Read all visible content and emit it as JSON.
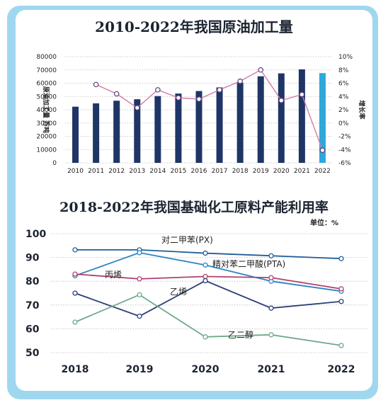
{
  "chart_data": [
    {
      "type": "bar",
      "title": "2010-2022年我国原油加工量",
      "ylabel": "原油加工量 万吨",
      "y2label": "增长率",
      "categories": [
        "2010",
        "2011",
        "2012",
        "2013",
        "2014",
        "2015",
        "2016",
        "2017",
        "2018",
        "2019",
        "2020",
        "2021",
        "2022"
      ],
      "ylim": [
        0,
        80000
      ],
      "yticks": [
        0,
        10000,
        20000,
        30000,
        40000,
        50000,
        60000,
        70000,
        80000
      ],
      "y2lim": [
        -6,
        10
      ],
      "y2ticks": [
        "-6%",
        "-4%",
        "-2%",
        "0%",
        "2%",
        "4%",
        "6%",
        "8%",
        "10%"
      ],
      "series": [
        {
          "kind": "bar",
          "values": [
            42300,
            44800,
            46800,
            47900,
            50300,
            52200,
            54100,
            56800,
            60400,
            65200,
            67400,
            70400,
            67600
          ]
        },
        {
          "kind": "line",
          "axis": "right",
          "values": [
            null,
            5.8,
            4.4,
            2.3,
            5.0,
            3.8,
            3.6,
            5.0,
            6.3,
            8.0,
            3.4,
            4.3,
            -4.1
          ]
        }
      ],
      "colors": {
        "bar": "#1e3566",
        "bar_highlight": "#2ea8da",
        "line": "#d57aa6"
      }
    },
    {
      "type": "line",
      "title": "2018-2022年我国基础化工原料产能利用率",
      "unit_label": "单位：%",
      "x": [
        "2018",
        "2019",
        "2020",
        "2021",
        "2022"
      ],
      "ylim": [
        50,
        100
      ],
      "yticks": [
        50,
        60,
        70,
        80,
        90,
        100
      ],
      "series": [
        {
          "name": "对二甲苯(PX)",
          "color": "#1f5e99",
          "values": [
            93.2,
            93.2,
            91.8,
            90.7,
            89.5
          ]
        },
        {
          "name": "精对苯二甲酸(PTA)",
          "color": "#2b86c2",
          "values": [
            82.3,
            92.0,
            86.8,
            80.0,
            75.8
          ]
        },
        {
          "name": "丙烯",
          "color": "#b04072",
          "values": [
            83.0,
            81.0,
            82.0,
            81.5,
            76.8
          ]
        },
        {
          "name": "乙烯",
          "color": "#2c3f78",
          "values": [
            75.0,
            65.3,
            80.2,
            68.7,
            71.5
          ]
        },
        {
          "name": "乙二醇",
          "color": "#6fa98a",
          "values": [
            62.8,
            74.3,
            56.6,
            57.5,
            53.0
          ]
        }
      ]
    }
  ]
}
